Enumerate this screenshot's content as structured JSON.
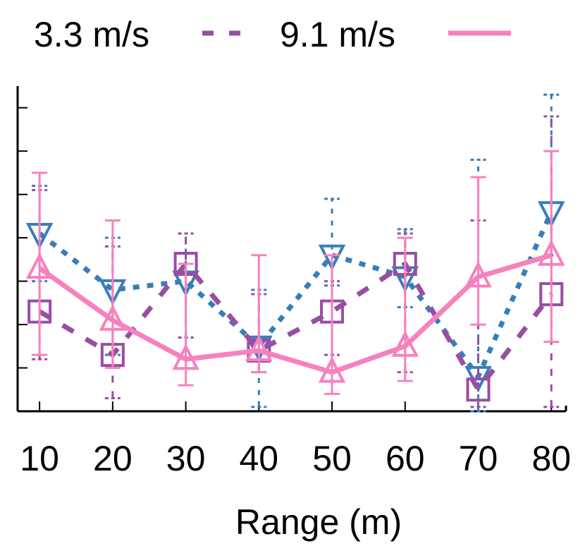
{
  "chart_data": {
    "type": "line",
    "xlabel": "Range (m)",
    "ylabel": "",
    "categories": [
      "10",
      "20",
      "30",
      "40",
      "50",
      "60",
      "70",
      "80"
    ],
    "x": [
      10,
      20,
      30,
      40,
      50,
      60,
      70,
      80
    ],
    "xlim": [
      7,
      82
    ],
    "ylim": [
      0,
      7.5
    ],
    "grid": false,
    "legend_position": "top",
    "series": [
      {
        "name": "",
        "color": "#377eb8",
        "marker": "triangle-down",
        "dash": "dotted",
        "in_legend": false,
        "values": [
          4.1,
          2.8,
          3.0,
          1.5,
          3.6,
          3.1,
          0.8,
          4.6
        ],
        "err_low": [
          3.0,
          1.3,
          1.7,
          0.1,
          2.9,
          2.4,
          0.0,
          3.6
        ],
        "err_high": [
          5.2,
          4.0,
          4.1,
          2.8,
          4.9,
          4.2,
          5.8,
          7.3
        ]
      },
      {
        "name": "3.3 m/s",
        "color": "#984ea3",
        "marker": "square",
        "dash": "dashed",
        "in_legend": true,
        "values": [
          2.3,
          1.3,
          3.4,
          1.4,
          2.3,
          3.4,
          0.5,
          2.7
        ],
        "err_low": [
          1.2,
          0.3,
          1.7,
          0.9,
          1.3,
          0.9,
          0.1,
          0.1
        ],
        "err_high": [
          5.1,
          3.8,
          4.1,
          2.7,
          3.0,
          4.1,
          4.4,
          6.8
        ]
      },
      {
        "name": "9.1 m/s",
        "color": "#f781bf",
        "marker": "triangle-up",
        "dash": "solid",
        "in_legend": true,
        "values": [
          3.3,
          2.1,
          1.2,
          1.4,
          0.9,
          1.5,
          3.1,
          3.6
        ],
        "err_low": [
          1.3,
          1.0,
          0.6,
          0.9,
          0.4,
          0.7,
          2.0,
          1.6
        ],
        "err_high": [
          5.5,
          4.4,
          3.4,
          3.6,
          3.6,
          4.0,
          5.4,
          6.0
        ]
      }
    ]
  }
}
